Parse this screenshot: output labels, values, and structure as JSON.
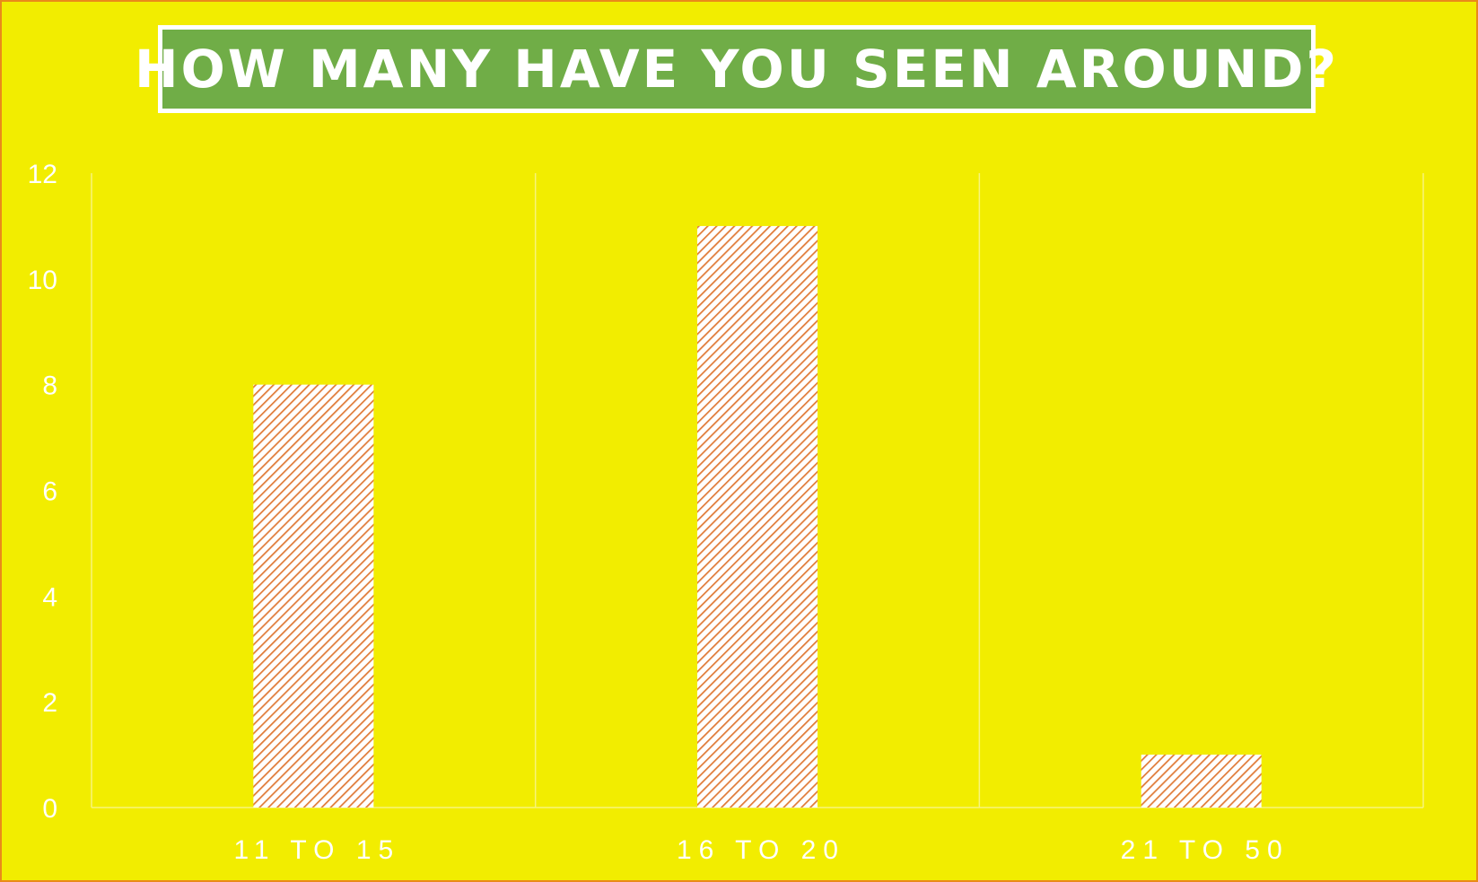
{
  "chart_data": {
    "type": "bar",
    "title": "HOW MANY HAVE YOU SEEN AROUND?",
    "categories": [
      "11 TO 15",
      "16 TO 20",
      "21 TO 50"
    ],
    "values": [
      8,
      11,
      1
    ],
    "ylim": [
      0,
      12
    ],
    "yticks": [
      "0",
      "2",
      "4",
      "6",
      "8",
      "10",
      "12"
    ],
    "grid": "vertical",
    "xlabel": "",
    "ylabel": "",
    "colors": {
      "background": "#f2ed00",
      "border": "#e98a1a",
      "title_fill": "#70ad47",
      "bar_hatch": "#e07b39",
      "bar_fill": "#ffffff",
      "text": "#ffffff"
    }
  }
}
